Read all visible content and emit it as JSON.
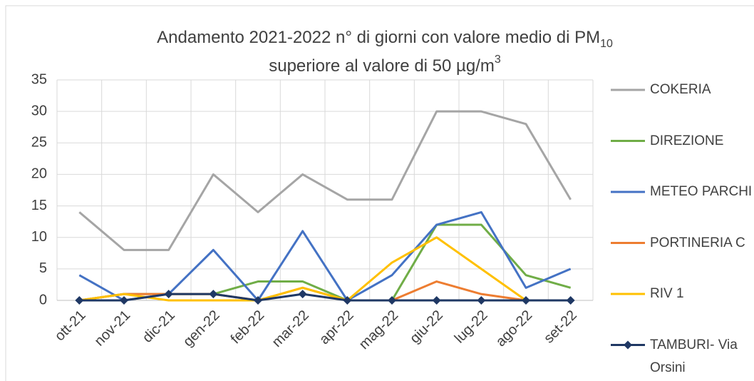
{
  "chart_data": {
    "type": "line",
    "title": [
      "Andamento 2021-2022 n° di giorni con valore medio di PM",
      "10",
      "superiore al valore di 50 µg/m",
      "3"
    ],
    "categories": [
      "ott-21",
      "nov-21",
      "dic-21",
      "gen-22",
      "feb-22",
      "mar-22",
      "apr-22",
      "mag-22",
      "giu-22",
      "lug-22",
      "ago-22",
      "set-22"
    ],
    "series": [
      {
        "name": "COKERIA",
        "color": "#a5a5a5",
        "values": [
          14,
          8,
          8,
          20,
          14,
          20,
          16,
          16,
          30,
          30,
          28,
          16
        ]
      },
      {
        "name": "DIREZIONE",
        "color": "#70ad47",
        "values": [
          0,
          1,
          1,
          1,
          3,
          3,
          0,
          0,
          12,
          12,
          4,
          2
        ]
      },
      {
        "name": "METEO PARCHI",
        "color": "#4472c4",
        "values": [
          4,
          0,
          1,
          8,
          0,
          11,
          0,
          4,
          12,
          14,
          2,
          5
        ]
      },
      {
        "name": "PORTINERIA C",
        "color": "#ed7d31",
        "values": [
          0,
          1,
          1,
          1,
          0,
          2,
          0,
          0,
          3,
          1,
          0,
          0
        ]
      },
      {
        "name": "RIV 1",
        "color": "#ffc000",
        "values": [
          0,
          1,
          0,
          0,
          0,
          2,
          0,
          6,
          10,
          5,
          0,
          0
        ]
      },
      {
        "name": "TAMBURI- Via Orsini",
        "color": "#1f3864",
        "marker": "diamond",
        "values": [
          0,
          0,
          1,
          1,
          0,
          1,
          0,
          0,
          0,
          0,
          0,
          0
        ]
      }
    ],
    "ylim": [
      0,
      35
    ],
    "yticks": [
      0,
      5,
      10,
      15,
      20,
      25,
      30,
      35
    ],
    "grid": true
  }
}
